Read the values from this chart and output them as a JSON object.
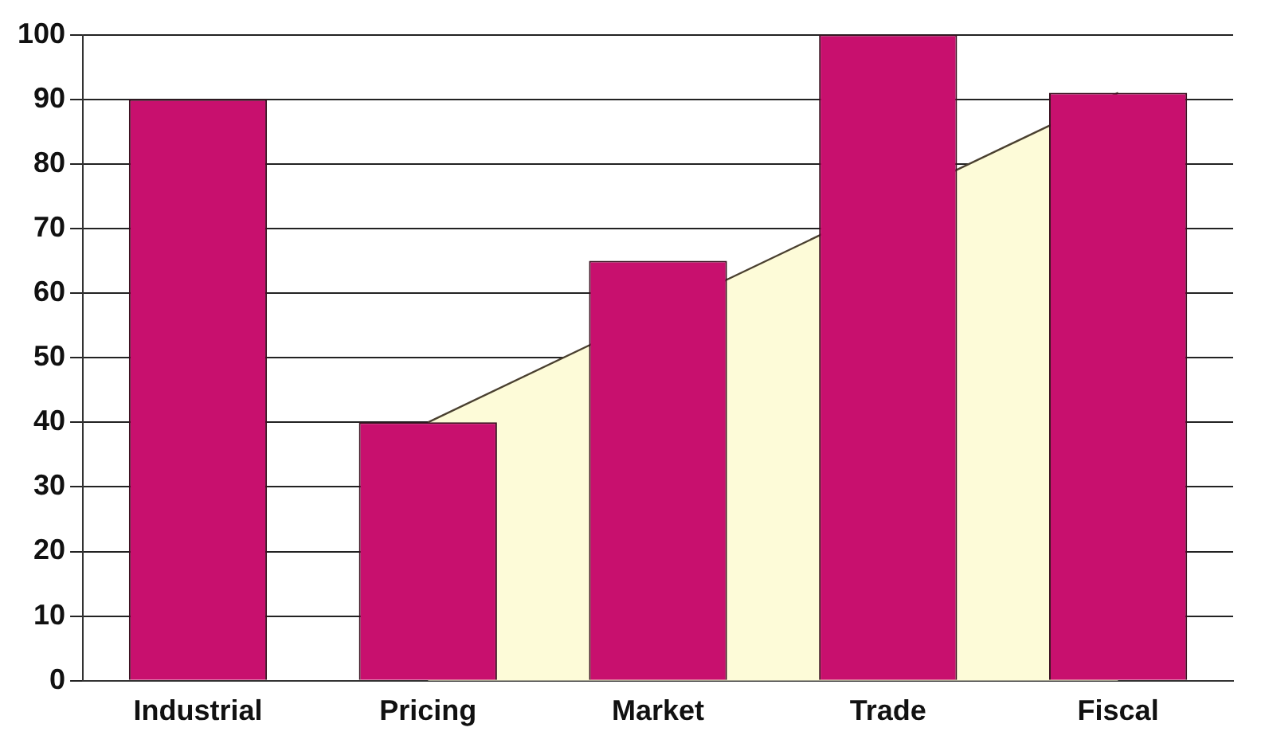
{
  "chart_data": {
    "type": "bar",
    "categories": [
      "Industrial",
      "Pricing",
      "Market",
      "Trade",
      "Fiscal"
    ],
    "series": [
      {
        "type": "area",
        "color": "#fdfbd8",
        "values": [
          null,
          40,
          null,
          null,
          91
        ]
      },
      {
        "color": "#c8106e",
        "values": [
          90,
          40,
          65,
          100,
          91
        ]
      }
    ],
    "ylim": [
      0,
      100
    ],
    "yticks": [
      0,
      10,
      20,
      30,
      40,
      50,
      60,
      70,
      80,
      90,
      100
    ],
    "grid": "y",
    "legend": false
  }
}
